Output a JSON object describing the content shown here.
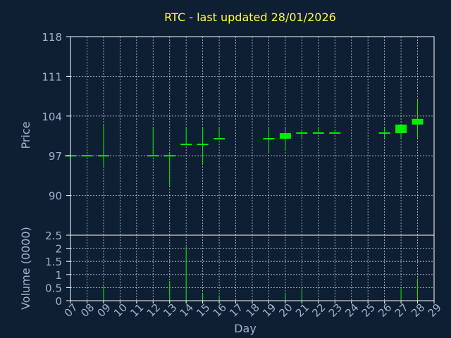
{
  "chart_data": {
    "title": "RTC - last updated 28/01/2026",
    "type": "candlestick",
    "colors": {
      "background": "#0f1f33",
      "title": "#ffff33",
      "axis_text": "#9fb3c8",
      "frame": "#ffffff",
      "grid": "#ffffff",
      "candle": "#00ee00"
    },
    "x_axis": {
      "label": "Day",
      "ticks": [
        "07",
        "08",
        "09",
        "10",
        "11",
        "12",
        "13",
        "14",
        "15",
        "16",
        "17",
        "18",
        "19",
        "20",
        "21",
        "22",
        "23",
        "24",
        "25",
        "26",
        "27",
        "28",
        "29"
      ]
    },
    "price": {
      "ylabel": "Price",
      "ylim": [
        83,
        118
      ],
      "ticks": [
        118,
        111,
        104,
        97,
        90
      ],
      "candles": [
        {
          "day": "07",
          "open": 97,
          "high": 97,
          "low": 97,
          "close": 97
        },
        {
          "day": "08",
          "open": 97,
          "high": 97,
          "low": 97,
          "close": 97
        },
        {
          "day": "09",
          "open": 97,
          "high": 102.5,
          "low": 95,
          "close": 97
        },
        {
          "day": "12",
          "open": 97,
          "high": 102,
          "low": 97,
          "close": 97
        },
        {
          "day": "13",
          "open": 97,
          "high": 97.5,
          "low": 91.5,
          "close": 97
        },
        {
          "day": "14",
          "open": 99,
          "high": 102,
          "low": 99,
          "close": 99
        },
        {
          "day": "15",
          "open": 99,
          "high": 102,
          "low": 95.5,
          "close": 99
        },
        {
          "day": "16",
          "open": 100,
          "high": 102,
          "low": 100,
          "close": 100
        },
        {
          "day": "19",
          "open": 100,
          "high": 102,
          "low": 97.5,
          "close": 100
        },
        {
          "day": "20",
          "open": 100,
          "high": 102,
          "low": 98,
          "close": 101
        },
        {
          "day": "21",
          "open": 101,
          "high": 101.5,
          "low": 100,
          "close": 101
        },
        {
          "day": "22",
          "open": 101,
          "high": 102,
          "low": 101,
          "close": 101
        },
        {
          "day": "23",
          "open": 101,
          "high": 101.5,
          "low": 101,
          "close": 101
        },
        {
          "day": "26",
          "open": 101,
          "high": 102,
          "low": 100,
          "close": 101
        },
        {
          "day": "27",
          "open": 101,
          "high": 102.5,
          "low": 100,
          "close": 102.5
        },
        {
          "day": "28",
          "open": 102.5,
          "high": 107,
          "low": 100,
          "close": 103.5
        }
      ]
    },
    "volume": {
      "ylabel": "Volume (0000)",
      "ylim": [
        0,
        2.5
      ],
      "ticks": [
        "2.5",
        "2",
        "1.5",
        "1",
        "0.5",
        "0"
      ],
      "bars": [
        {
          "day": "09",
          "value": 0.55
        },
        {
          "day": "13",
          "value": 0.75
        },
        {
          "day": "14",
          "value": 2.05
        },
        {
          "day": "15",
          "value": 0.25
        },
        {
          "day": "16",
          "value": 0.2
        },
        {
          "day": "20",
          "value": 0.3
        },
        {
          "day": "21",
          "value": 0.45
        },
        {
          "day": "27",
          "value": 0.5
        },
        {
          "day": "28",
          "value": 0.85
        }
      ]
    }
  }
}
